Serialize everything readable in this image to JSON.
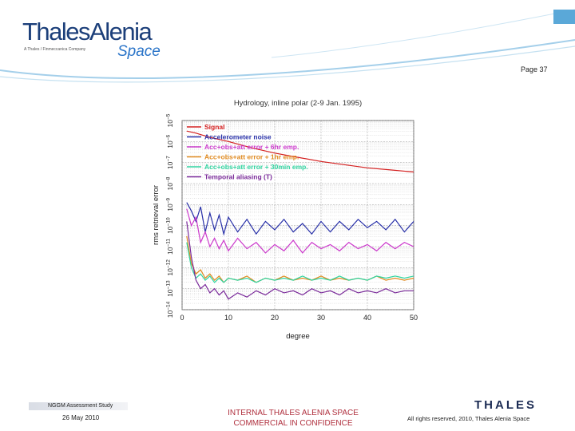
{
  "header": {
    "brand_name": "ThalesAlenia",
    "brand_tagline": "A Thales / Finmeccanica Company",
    "brand_space": "Space",
    "page_number": "Page 37",
    "accent_color": "#5aa8d8"
  },
  "footer": {
    "study_title": "NGGM Assessment Study",
    "date": "26 May 2010",
    "confidentiality_line1": "INTERNAL THALES ALENIA SPACE",
    "confidentiality_line2": "COMMERCIAL IN CONFIDENCE",
    "thales_logo": "THALES",
    "rights": "All rights reserved, 2010, Thales Alenia Space"
  },
  "chart_data": {
    "type": "line",
    "title": "Hydrology, inline polar (2-9 Jan. 1995)",
    "xlabel": "degree",
    "ylabel": "rms retrieval error",
    "xlim": [
      0,
      50
    ],
    "ylog": true,
    "ylim_exp": [
      -14,
      -5
    ],
    "xticks": [
      "0",
      "10",
      "20",
      "30",
      "40",
      "50"
    ],
    "yticks": [
      "10^{-14}",
      "10^{-13}",
      "10^{-12}",
      "10^{-11}",
      "10^{-10}",
      "10^{-9}",
      "10^{-8}",
      "10^{-7}",
      "10^{-6}",
      "10^{-5}"
    ],
    "grid": true,
    "legend_position": "top-left",
    "series": [
      {
        "name": "Signal",
        "color": "#d42020",
        "x": [
          1,
          3,
          6,
          10,
          15,
          20,
          25,
          30,
          35,
          40,
          45,
          50
        ],
        "y_exp": [
          -5.5,
          -5.6,
          -5.8,
          -6.0,
          -6.3,
          -6.55,
          -6.75,
          -6.95,
          -7.1,
          -7.25,
          -7.35,
          -7.45
        ]
      },
      {
        "name": "Accelerometer noise",
        "color": "#2830a8",
        "x": [
          1,
          2,
          3,
          4,
          5,
          6,
          7,
          8,
          9,
          10,
          12,
          14,
          16,
          18,
          20,
          22,
          24,
          26,
          28,
          30,
          32,
          34,
          36,
          38,
          40,
          42,
          44,
          46,
          48,
          50
        ],
        "y_exp": [
          -8.9,
          -9.3,
          -9.8,
          -9.1,
          -10.3,
          -9.4,
          -10.2,
          -9.5,
          -10.4,
          -9.6,
          -10.3,
          -9.7,
          -10.4,
          -9.8,
          -10.2,
          -9.7,
          -10.3,
          -9.9,
          -10.4,
          -9.8,
          -10.3,
          -9.8,
          -10.2,
          -9.7,
          -10.1,
          -9.8,
          -10.2,
          -9.7,
          -10.3,
          -9.8
        ]
      },
      {
        "name": "Acc+obs+att error + 6hr emp.",
        "color": "#cc3acc",
        "x": [
          1,
          2,
          3,
          4,
          5,
          6,
          7,
          8,
          9,
          10,
          12,
          14,
          16,
          18,
          20,
          22,
          24,
          26,
          28,
          30,
          32,
          34,
          36,
          38,
          40,
          42,
          44,
          46,
          48,
          50
        ],
        "y_exp": [
          -9.2,
          -10.0,
          -9.6,
          -10.8,
          -10.3,
          -11.0,
          -10.6,
          -11.1,
          -10.7,
          -11.2,
          -10.6,
          -11.1,
          -10.8,
          -11.3,
          -10.9,
          -11.2,
          -10.7,
          -11.3,
          -10.8,
          -11.1,
          -10.9,
          -11.2,
          -10.8,
          -11.1,
          -10.9,
          -11.2,
          -10.8,
          -11.1,
          -10.8,
          -11.0
        ]
      },
      {
        "name": "Acc+obs+att error + 1hr emp.",
        "color": "#e08a20",
        "x": [
          1,
          2,
          3,
          4,
          5,
          6,
          7,
          8,
          9,
          10,
          12,
          14,
          16,
          18,
          20,
          22,
          24,
          26,
          28,
          30,
          32,
          34,
          36,
          38,
          40,
          42,
          44,
          46,
          48,
          50
        ],
        "y_exp": [
          -10.5,
          -11.8,
          -12.3,
          -12.1,
          -12.5,
          -12.3,
          -12.6,
          -12.4,
          -12.7,
          -12.5,
          -12.6,
          -12.4,
          -12.7,
          -12.5,
          -12.6,
          -12.4,
          -12.6,
          -12.5,
          -12.6,
          -12.4,
          -12.6,
          -12.5,
          -12.6,
          -12.5,
          -12.6,
          -12.4,
          -12.6,
          -12.5,
          -12.6,
          -12.5
        ]
      },
      {
        "name": "Acc+obs+att error + 30min emp.",
        "color": "#30d4a0",
        "x": [
          1,
          2,
          3,
          4,
          5,
          6,
          7,
          8,
          9,
          10,
          12,
          14,
          16,
          18,
          20,
          22,
          24,
          26,
          28,
          30,
          32,
          34,
          36,
          38,
          40,
          42,
          44,
          46,
          48,
          50
        ],
        "y_exp": [
          -10.8,
          -12.0,
          -12.5,
          -12.3,
          -12.6,
          -12.4,
          -12.7,
          -12.5,
          -12.7,
          -12.5,
          -12.6,
          -12.5,
          -12.7,
          -12.5,
          -12.6,
          -12.5,
          -12.6,
          -12.4,
          -12.6,
          -12.5,
          -12.6,
          -12.4,
          -12.6,
          -12.5,
          -12.6,
          -12.4,
          -12.5,
          -12.4,
          -12.5,
          -12.4
        ]
      },
      {
        "name": "Temporal aliasing (T)",
        "color": "#7a2a9a",
        "x": [
          1,
          2,
          3,
          4,
          5,
          6,
          7,
          8,
          9,
          10,
          12,
          14,
          16,
          18,
          20,
          22,
          24,
          26,
          28,
          30,
          32,
          34,
          36,
          38,
          40,
          42,
          44,
          46,
          48,
          50
        ],
        "y_exp": [
          -9.8,
          -11.5,
          -12.6,
          -13.0,
          -12.8,
          -13.2,
          -13.0,
          -13.3,
          -13.1,
          -13.5,
          -13.2,
          -13.4,
          -13.1,
          -13.3,
          -13.0,
          -13.2,
          -13.1,
          -13.3,
          -13.0,
          -13.2,
          -13.1,
          -13.3,
          -13.0,
          -13.2,
          -13.1,
          -13.2,
          -13.0,
          -13.2,
          -13.1,
          -13.1
        ]
      }
    ]
  }
}
